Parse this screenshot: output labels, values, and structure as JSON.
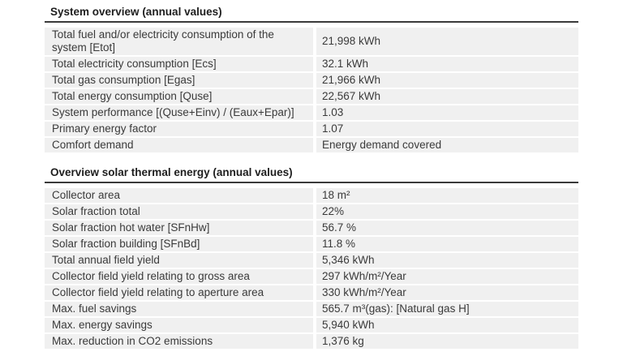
{
  "document": {
    "tables": [
      {
        "title": "System overview (annual values)",
        "rows": [
          {
            "label": "Total fuel and/or electricity consumption of the system [Etot]",
            "value": "21,998 kWh"
          },
          {
            "label": "Total electricity consumption [Ecs]",
            "value": "32.1 kWh"
          },
          {
            "label": "Total gas consumption [Egas]",
            "value": "21,966 kWh"
          },
          {
            "label": "Total energy consumption [Quse]",
            "value": "22,567 kWh"
          },
          {
            "label": "System performance [(Quse+Einv) / (Eaux+Epar)]",
            "value": "1.03"
          },
          {
            "label": "Primary energy factor",
            "value": "1.07"
          },
          {
            "label": "Comfort demand",
            "value": "Energy demand covered"
          }
        ]
      },
      {
        "title": "Overview solar thermal energy (annual values)",
        "rows": [
          {
            "label": "Collector area",
            "value": "18 m²"
          },
          {
            "label": "Solar fraction total",
            "value": "22%"
          },
          {
            "label": "Solar fraction hot water [SFnHw]",
            "value": "56.7 %"
          },
          {
            "label": "Solar fraction building [SFnBd]",
            "value": "11.8 %"
          },
          {
            "label": "Total annual field yield",
            "value": "5,346 kWh"
          },
          {
            "label": "Collector field yield relating to gross area",
            "value": "297 kWh/m²/Year"
          },
          {
            "label": "Collector field yield relating to aperture area",
            "value": "330 kWh/m²/Year"
          },
          {
            "label": "Max. fuel savings",
            "value": "565.7 m³(gas): [Natural gas H]"
          },
          {
            "label": "Max. energy savings",
            "value": "5,940 kWh"
          },
          {
            "label": "Max. reduction in CO2 emissions",
            "value": "1,376 kg"
          }
        ]
      }
    ],
    "colors": {
      "row_background": "#f0f0f0",
      "rule": "#3a3a3a",
      "text": "#3a3a3a",
      "title": "#1e1e1e"
    }
  }
}
